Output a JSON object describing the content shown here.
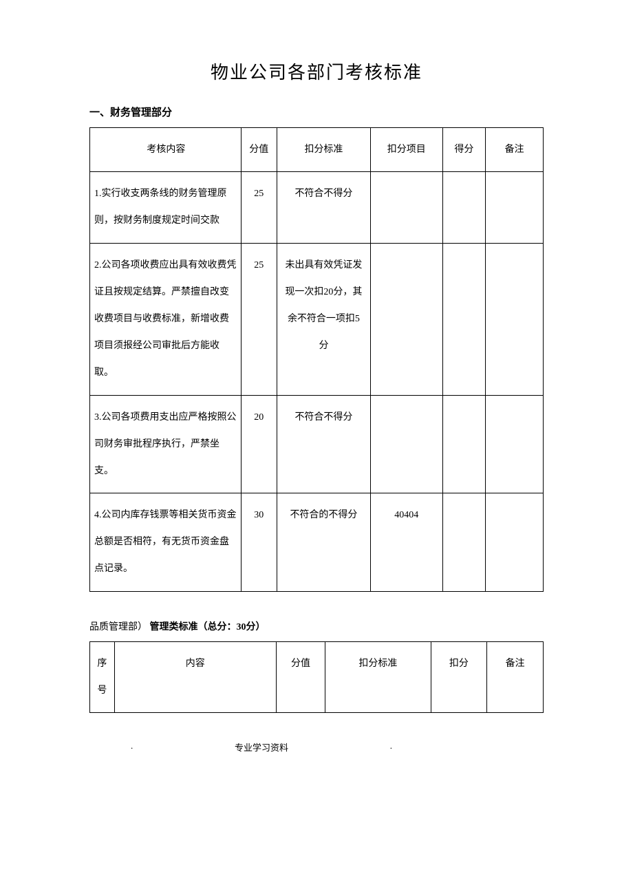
{
  "page_title": "物业公司各部门考核标准",
  "section1": {
    "heading": "一、财务管理部分",
    "table": {
      "columns": [
        "考核内容",
        "分值",
        "扣分标准",
        "扣分项目",
        "得分",
        "备注"
      ],
      "rows": [
        {
          "content": "1.实行收支两条线的财务管理原则，按财务制度规定时间交款",
          "score": "25",
          "deduct_std": "不符合不得分",
          "deduct_item": "",
          "result": "",
          "remark": ""
        },
        {
          "content": "2.公司各项收费应出具有效收费凭证且按规定结算。严禁擅自改变收费项目与收费标准，新增收费项目须报经公司审批后方能收取。",
          "score": "25",
          "deduct_std": "未出具有效凭证发现一次扣20分，其余不符合一项扣5分",
          "deduct_item": "",
          "result": "",
          "remark": ""
        },
        {
          "content": "3.公司各项费用支出应严格按照公司财务审批程序执行，严禁坐支。",
          "score": "20",
          "deduct_std": "不符合不得分",
          "deduct_item": "",
          "result": "",
          "remark": ""
        },
        {
          "content": "4.公司内库存钱票等相关货币资金总额是否相符，有无货币资金盘点记录。",
          "score": "30",
          "deduct_std": "不符合的不得分",
          "deduct_item": "40404",
          "result": "",
          "remark": ""
        }
      ]
    }
  },
  "section2": {
    "heading_prefix": "品质管理部）",
    "heading_bold": "管理类标准（总分：30分）",
    "table": {
      "columns": [
        "序号",
        "内容",
        "分值",
        "扣分标准",
        "扣分",
        "备注"
      ]
    }
  },
  "footer_left": ".",
  "footer_center": "专业学习资料",
  "footer_right": "."
}
